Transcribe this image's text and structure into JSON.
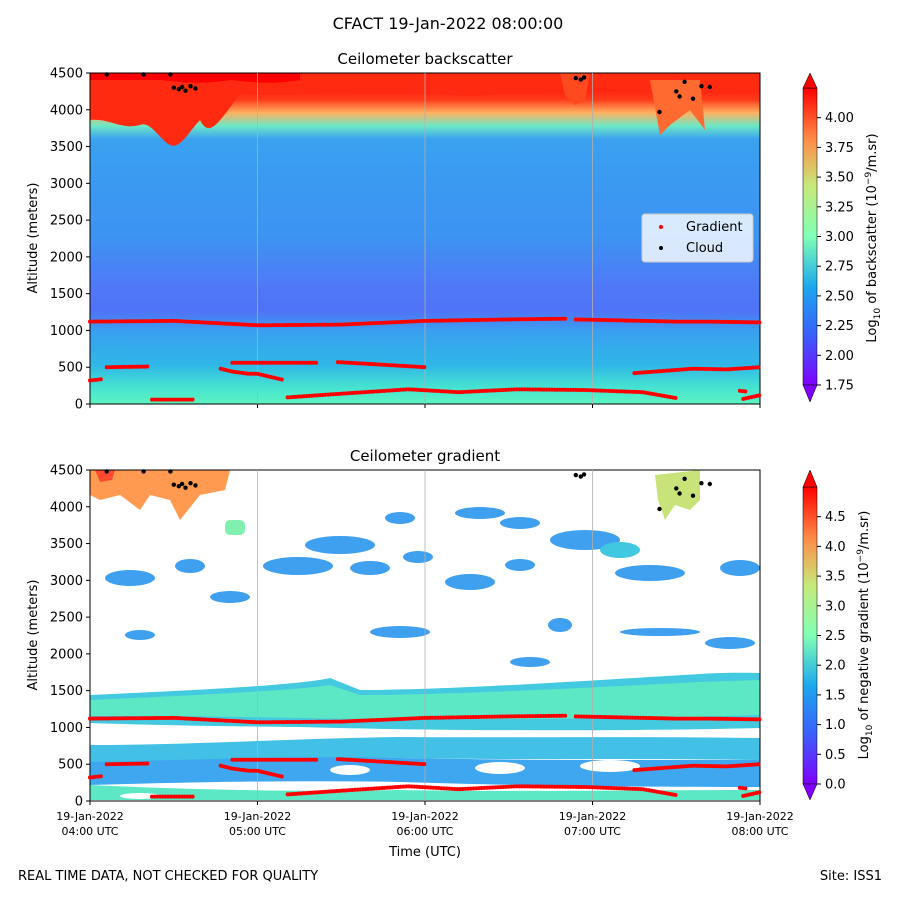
{
  "chart_data": {
    "type": "heatmap",
    "title": "CFACT 19-Jan-2022 08:00:00",
    "footer_left": "REAL TIME DATA, NOT CHECKED FOR QUALITY",
    "footer_right": "Site: ISS1",
    "x_label": "Time (UTC)",
    "x_range_hours": [
      4,
      8
    ],
    "x_ticks": [
      {
        "value": 4,
        "line1": "19-Jan-2022",
        "line2": "04:00 UTC"
      },
      {
        "value": 5,
        "line1": "19-Jan-2022",
        "line2": "05:00 UTC"
      },
      {
        "value": 6,
        "line1": "19-Jan-2022",
        "line2": "06:00 UTC"
      },
      {
        "value": 7,
        "line1": "19-Jan-2022",
        "line2": "07:00 UTC"
      },
      {
        "value": 8,
        "line1": "19-Jan-2022",
        "line2": "08:00 UTC"
      }
    ],
    "panels": [
      {
        "id": "backscatter",
        "title": "Ceilometer backscatter",
        "y_label": "Altitude (meters)",
        "ylim": [
          0,
          4500
        ],
        "y_ticks": [
          0,
          500,
          1000,
          1500,
          2000,
          2500,
          3000,
          3500,
          4000,
          4500
        ],
        "colorbar": {
          "label_prefix": "Log",
          "label_sub": "10",
          "label_mid": " of backscatter (10",
          "label_sup": "−9",
          "label_suffix": "/m.sr)",
          "range": [
            1.75,
            4.25
          ],
          "ticks": [
            "1.75",
            "2.00",
            "2.25",
            "2.50",
            "2.75",
            "3.00",
            "3.25",
            "3.50",
            "3.75",
            "4.00"
          ]
        },
        "legend": [
          "Gradient",
          "Cloud"
        ]
      },
      {
        "id": "gradient",
        "title": "Ceilometer gradient",
        "y_label": "Altitude (meters)",
        "ylim": [
          0,
          4500
        ],
        "y_ticks": [
          0,
          500,
          1000,
          1500,
          2000,
          2500,
          3000,
          3500,
          4000,
          4500
        ],
        "colorbar": {
          "label_prefix": "Log",
          "label_sub": "10",
          "label_mid": " of negative gradient (10",
          "label_sup": "−9",
          "label_suffix": "/m.sr)",
          "range": [
            0,
            5
          ],
          "ticks": [
            "0.0",
            "0.5",
            "1.0",
            "1.5",
            "2.0",
            "2.5",
            "3.0",
            "3.5",
            "4.0",
            "4.5"
          ]
        }
      }
    ],
    "gradient_layers": [
      [
        [
          4.0,
          1120
        ],
        [
          4.5,
          1130
        ],
        [
          5.0,
          1070
        ],
        [
          5.5,
          1080
        ],
        [
          6.0,
          1130
        ],
        [
          6.5,
          1150
        ],
        [
          6.85,
          1160
        ]
      ],
      [
        [
          6.9,
          1150
        ],
        [
          7.5,
          1120
        ],
        [
          7.7,
          1120
        ],
        [
          8.0,
          1110
        ]
      ],
      [
        [
          4.1,
          500
        ],
        [
          4.35,
          510
        ]
      ],
      [
        [
          4.78,
          480
        ],
        [
          4.85,
          440
        ],
        [
          4.95,
          410
        ],
        [
          5.0,
          410
        ],
        [
          5.15,
          330
        ]
      ],
      [
        [
          4.85,
          560
        ],
        [
          5.0,
          560
        ],
        [
          5.35,
          560
        ]
      ],
      [
        [
          5.48,
          570
        ],
        [
          6.0,
          500
        ]
      ],
      [
        [
          4.0,
          320
        ],
        [
          4.08,
          340
        ]
      ],
      [
        [
          4.37,
          60
        ],
        [
          4.62,
          60
        ]
      ],
      [
        [
          5.18,
          90
        ],
        [
          5.5,
          140
        ],
        [
          5.9,
          200
        ],
        [
          6.2,
          160
        ],
        [
          6.55,
          200
        ],
        [
          6.95,
          190
        ],
        [
          7.3,
          160
        ],
        [
          7.5,
          80
        ]
      ],
      [
        [
          7.25,
          420
        ],
        [
          7.6,
          480
        ],
        [
          7.8,
          470
        ],
        [
          8.0,
          500
        ]
      ],
      [
        [
          7.9,
          70
        ],
        [
          8.0,
          120
        ]
      ],
      [
        [
          7.88,
          180
        ],
        [
          7.92,
          170
        ]
      ]
    ],
    "cloud_points": [
      [
        4.1,
        4480
      ],
      [
        4.32,
        4480
      ],
      [
        4.48,
        4480
      ],
      [
        4.5,
        4300
      ],
      [
        4.53,
        4280
      ],
      [
        4.55,
        4310
      ],
      [
        4.57,
        4260
      ],
      [
        4.6,
        4320
      ],
      [
        4.63,
        4290
      ],
      [
        6.9,
        4430
      ],
      [
        6.93,
        4410
      ],
      [
        6.95,
        4440
      ],
      [
        7.4,
        3970
      ],
      [
        7.5,
        4250
      ],
      [
        7.52,
        4180
      ],
      [
        7.55,
        4380
      ],
      [
        7.6,
        4150
      ],
      [
        7.65,
        4320
      ],
      [
        7.7,
        4310
      ]
    ]
  }
}
